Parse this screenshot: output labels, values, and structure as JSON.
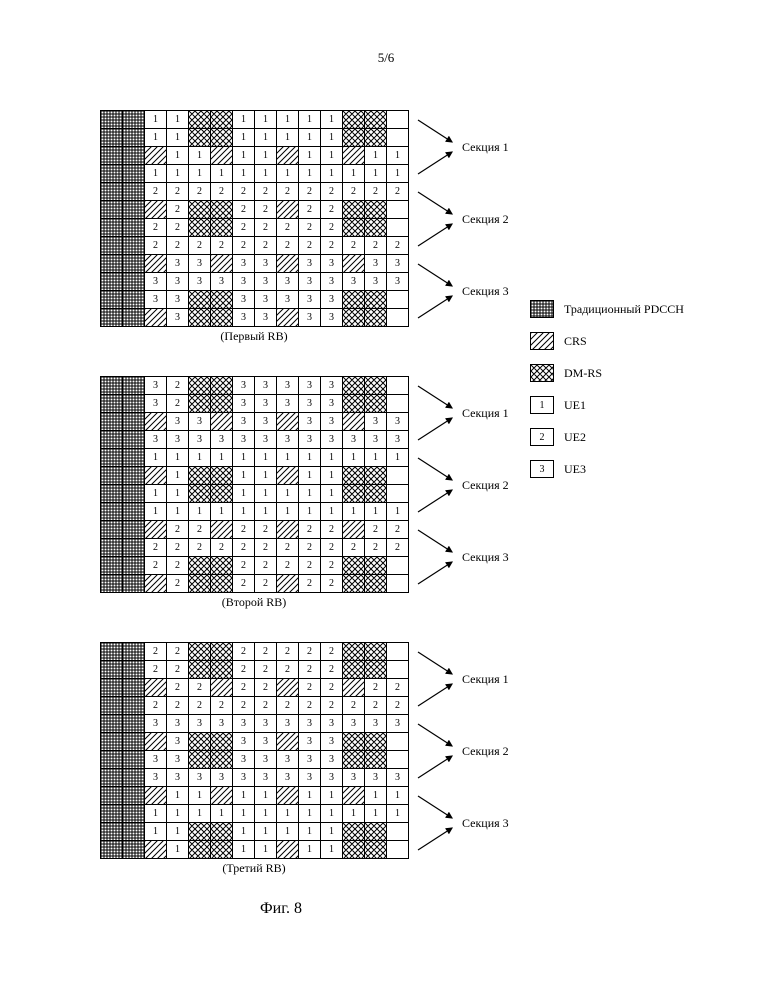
{
  "page_num": "5/6",
  "figure_caption": "Фиг. 8",
  "cell_size": {
    "w": 22,
    "h": 18
  },
  "grid_dims": {
    "cols": 14,
    "rows": 12
  },
  "colors": {
    "background": "#ffffff",
    "line": "#000000"
  },
  "legend": [
    {
      "type": "p-grid",
      "label": "Традиционный PDCCH"
    },
    {
      "type": "p-crs",
      "label": "CRS"
    },
    {
      "type": "p-dmrs",
      "label": "DM-RS"
    },
    {
      "type": "num",
      "num": "1",
      "label": "UE1"
    },
    {
      "type": "num",
      "num": "2",
      "label": "UE2"
    },
    {
      "type": "num",
      "num": "3",
      "label": "UE3"
    }
  ],
  "section_labels": [
    "Секция 1",
    "Секция 2",
    "Секция 3"
  ],
  "block_titles": [
    "(Первый RB)",
    "(Второй RB)",
    "(Третий RB)"
  ],
  "blocks": [
    {
      "rows": [
        [
          "G",
          "G",
          "1",
          "1",
          "D",
          "D",
          "1",
          "1",
          "1",
          "1",
          "1",
          "D",
          "D",
          "-"
        ],
        [
          "G",
          "G",
          "1",
          "1",
          "D",
          "D",
          "1",
          "1",
          "1",
          "1",
          "1",
          "D",
          "D",
          "-"
        ],
        [
          "G",
          "G",
          "C",
          "1",
          "1",
          "C",
          "1",
          "1",
          "C",
          "1",
          "1",
          "C",
          "1",
          "1"
        ],
        [
          "G",
          "G",
          "1",
          "1",
          "1",
          "1",
          "1",
          "1",
          "1",
          "1",
          "1",
          "1",
          "1",
          "1"
        ],
        [
          "G",
          "G",
          "2",
          "2",
          "2",
          "2",
          "2",
          "2",
          "2",
          "2",
          "2",
          "2",
          "2",
          "2"
        ],
        [
          "G",
          "G",
          "C",
          "2",
          "D",
          "D",
          "2",
          "2",
          "C",
          "2",
          "2",
          "D",
          "D",
          "-"
        ],
        [
          "G",
          "G",
          "2",
          "2",
          "D",
          "D",
          "2",
          "2",
          "2",
          "2",
          "2",
          "D",
          "D",
          "-"
        ],
        [
          "G",
          "G",
          "2",
          "2",
          "2",
          "2",
          "2",
          "2",
          "2",
          "2",
          "2",
          "2",
          "2",
          "2"
        ],
        [
          "G",
          "G",
          "C",
          "3",
          "3",
          "C",
          "3",
          "3",
          "C",
          "3",
          "3",
          "C",
          "3",
          "3"
        ],
        [
          "G",
          "G",
          "3",
          "3",
          "3",
          "3",
          "3",
          "3",
          "3",
          "3",
          "3",
          "3",
          "3",
          "3"
        ],
        [
          "G",
          "G",
          "3",
          "3",
          "D",
          "D",
          "3",
          "3",
          "3",
          "3",
          "3",
          "D",
          "D",
          "-"
        ],
        [
          "G",
          "G",
          "C",
          "3",
          "D",
          "D",
          "3",
          "3",
          "C",
          "3",
          "3",
          "D",
          "D",
          "-"
        ]
      ]
    },
    {
      "rows": [
        [
          "G",
          "G",
          "3",
          "2",
          "D",
          "D",
          "3",
          "3",
          "3",
          "3",
          "3",
          "D",
          "D",
          "-"
        ],
        [
          "G",
          "G",
          "3",
          "2",
          "D",
          "D",
          "3",
          "3",
          "3",
          "3",
          "3",
          "D",
          "D",
          "-"
        ],
        [
          "G",
          "G",
          "C",
          "3",
          "3",
          "C",
          "3",
          "3",
          "C",
          "3",
          "3",
          "C",
          "3",
          "3"
        ],
        [
          "G",
          "G",
          "3",
          "3",
          "3",
          "3",
          "3",
          "3",
          "3",
          "3",
          "3",
          "3",
          "3",
          "3"
        ],
        [
          "G",
          "G",
          "1",
          "1",
          "1",
          "1",
          "1",
          "1",
          "1",
          "1",
          "1",
          "1",
          "1",
          "1"
        ],
        [
          "G",
          "G",
          "C",
          "1",
          "D",
          "D",
          "1",
          "1",
          "C",
          "1",
          "1",
          "D",
          "D",
          "-"
        ],
        [
          "G",
          "G",
          "1",
          "1",
          "D",
          "D",
          "1",
          "1",
          "1",
          "1",
          "1",
          "D",
          "D",
          "-"
        ],
        [
          "G",
          "G",
          "1",
          "1",
          "1",
          "1",
          "1",
          "1",
          "1",
          "1",
          "1",
          "1",
          "1",
          "1"
        ],
        [
          "G",
          "G",
          "C",
          "2",
          "2",
          "C",
          "2",
          "2",
          "C",
          "2",
          "2",
          "C",
          "2",
          "2"
        ],
        [
          "G",
          "G",
          "2",
          "2",
          "2",
          "2",
          "2",
          "2",
          "2",
          "2",
          "2",
          "2",
          "2",
          "2"
        ],
        [
          "G",
          "G",
          "2",
          "2",
          "D",
          "D",
          "2",
          "2",
          "2",
          "2",
          "2",
          "D",
          "D",
          "-"
        ],
        [
          "G",
          "G",
          "C",
          "2",
          "D",
          "D",
          "2",
          "2",
          "C",
          "2",
          "2",
          "D",
          "D",
          "-"
        ]
      ]
    },
    {
      "rows": [
        [
          "G",
          "G",
          "2",
          "2",
          "D",
          "D",
          "2",
          "2",
          "2",
          "2",
          "2",
          "D",
          "D",
          "-"
        ],
        [
          "G",
          "G",
          "2",
          "2",
          "D",
          "D",
          "2",
          "2",
          "2",
          "2",
          "2",
          "D",
          "D",
          "-"
        ],
        [
          "G",
          "G",
          "C",
          "2",
          "2",
          "C",
          "2",
          "2",
          "C",
          "2",
          "2",
          "C",
          "2",
          "2"
        ],
        [
          "G",
          "G",
          "2",
          "2",
          "2",
          "2",
          "2",
          "2",
          "2",
          "2",
          "2",
          "2",
          "2",
          "2"
        ],
        [
          "G",
          "G",
          "3",
          "3",
          "3",
          "3",
          "3",
          "3",
          "3",
          "3",
          "3",
          "3",
          "3",
          "3"
        ],
        [
          "G",
          "G",
          "C",
          "3",
          "D",
          "D",
          "3",
          "3",
          "C",
          "3",
          "3",
          "D",
          "D",
          "-"
        ],
        [
          "G",
          "G",
          "3",
          "3",
          "D",
          "D",
          "3",
          "3",
          "3",
          "3",
          "3",
          "D",
          "D",
          "-"
        ],
        [
          "G",
          "G",
          "3",
          "3",
          "3",
          "3",
          "3",
          "3",
          "3",
          "3",
          "3",
          "3",
          "3",
          "3"
        ],
        [
          "G",
          "G",
          "C",
          "1",
          "1",
          "C",
          "1",
          "1",
          "C",
          "1",
          "1",
          "C",
          "1",
          "1"
        ],
        [
          "G",
          "G",
          "1",
          "1",
          "1",
          "1",
          "1",
          "1",
          "1",
          "1",
          "1",
          "1",
          "1",
          "1"
        ],
        [
          "G",
          "G",
          "1",
          "1",
          "D",
          "D",
          "1",
          "1",
          "1",
          "1",
          "1",
          "D",
          "D",
          "-"
        ],
        [
          "G",
          "G",
          "C",
          "1",
          "D",
          "D",
          "1",
          "1",
          "C",
          "1",
          "1",
          "D",
          "D",
          "-"
        ]
      ]
    }
  ]
}
